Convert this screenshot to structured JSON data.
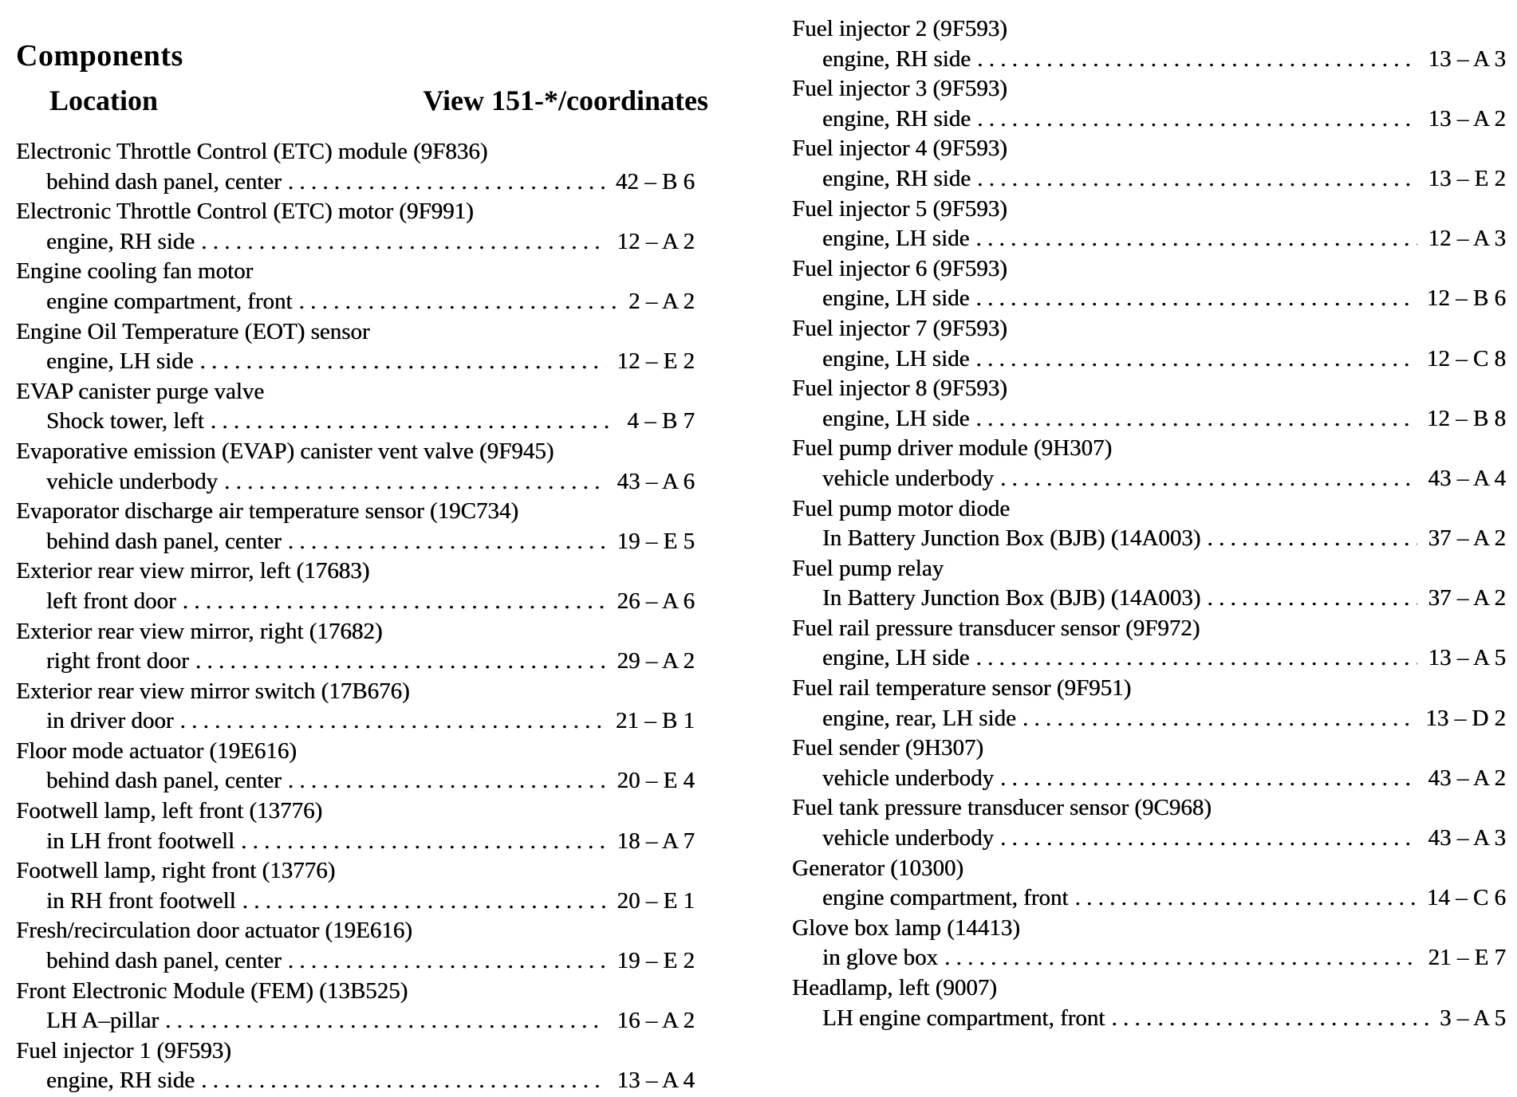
{
  "header": {
    "title": "Components",
    "col_location": "Location",
    "col_view": "View 151-*/coordinates"
  },
  "left_entries": [
    {
      "name": "Electronic Throttle Control (ETC) module (9F836)",
      "location": "behind dash panel, center",
      "coord": "42 – B 6"
    },
    {
      "name": "Electronic Throttle Control (ETC) motor (9F991)",
      "location": "engine, RH side",
      "coord": "12 – A 2"
    },
    {
      "name": "Engine cooling fan motor",
      "location": "engine compartment, front",
      "coord": "2 – A 2"
    },
    {
      "name": "Engine Oil Temperature (EOT) sensor",
      "location": "engine, LH side",
      "coord": "12 – E 2"
    },
    {
      "name": "EVAP canister purge valve",
      "location": "Shock tower, left",
      "coord": "4 – B 7"
    },
    {
      "name": "Evaporative emission (EVAP) canister vent valve (9F945)",
      "location": "vehicle underbody",
      "coord": "43 – A 6"
    },
    {
      "name": "Evaporator discharge air temperature sensor (19C734)",
      "location": "behind dash panel, center",
      "coord": "19 – E 5"
    },
    {
      "name": "Exterior rear view mirror, left (17683)",
      "location": "left front door",
      "coord": "26 – A 6"
    },
    {
      "name": "Exterior rear view mirror, right (17682)",
      "location": "right front door",
      "coord": "29 – A 2"
    },
    {
      "name": "Exterior rear view mirror switch (17B676)",
      "location": "in driver door",
      "coord": "21 – B 1"
    },
    {
      "name": "Floor mode actuator (19E616)",
      "location": "behind dash panel, center",
      "coord": "20 – E 4"
    },
    {
      "name": "Footwell lamp, left front (13776)",
      "location": "in LH front footwell",
      "coord": "18 – A 7"
    },
    {
      "name": "Footwell lamp, right front (13776)",
      "location": "in RH front footwell",
      "coord": "20 – E 1"
    },
    {
      "name": "Fresh/recirculation door actuator (19E616)",
      "location": "behind dash panel, center",
      "coord": "19 – E 2"
    },
    {
      "name": "Front Electronic Module (FEM) (13B525)",
      "location": "LH A–pillar",
      "coord": "16 – A 2"
    },
    {
      "name": "Fuel injector 1 (9F593)",
      "location": "engine, RH side",
      "coord": "13 – A 4"
    }
  ],
  "right_entries": [
    {
      "name": "Fuel injector 2 (9F593)",
      "location": "engine, RH side",
      "coord": "13 – A 3"
    },
    {
      "name": "Fuel injector 3 (9F593)",
      "location": "engine, RH side",
      "coord": "13 – A 2"
    },
    {
      "name": "Fuel injector 4 (9F593)",
      "location": "engine, RH side",
      "coord": "13 – E 2"
    },
    {
      "name": "Fuel injector 5 (9F593)",
      "location": "engine, LH side",
      "coord": "12 – A 3"
    },
    {
      "name": "Fuel injector 6 (9F593)",
      "location": "engine, LH side",
      "coord": "12 – B 6"
    },
    {
      "name": "Fuel injector 7 (9F593)",
      "location": "engine, LH side",
      "coord": "12 – C 8"
    },
    {
      "name": "Fuel injector 8 (9F593)",
      "location": "engine, LH side",
      "coord": "12 – B 8"
    },
    {
      "name": "Fuel pump driver module (9H307)",
      "location": "vehicle underbody",
      "coord": "43 – A 4"
    },
    {
      "name": "Fuel pump motor diode",
      "location": "In Battery Junction Box (BJB) (14A003)",
      "coord": "37 – A 2"
    },
    {
      "name": "Fuel pump relay",
      "location": "In Battery Junction Box (BJB) (14A003)",
      "coord": "37 – A 2"
    },
    {
      "name": "Fuel rail pressure transducer sensor (9F972)",
      "location": "engine, LH side",
      "coord": "13 – A 5"
    },
    {
      "name": "Fuel rail temperature sensor (9F951)",
      "location": "engine, rear, LH side",
      "coord": "13 – D 2"
    },
    {
      "name": "Fuel sender (9H307)",
      "location": "vehicle underbody",
      "coord": "43 – A 2"
    },
    {
      "name": "Fuel tank pressure transducer sensor (9C968)",
      "location": "vehicle underbody",
      "coord": "43 – A 3"
    },
    {
      "name": "Generator (10300)",
      "location": "engine compartment, front",
      "coord": "14 – C 6"
    },
    {
      "name": "Glove box lamp (14413)",
      "location": "in glove box",
      "coord": "21 – E 7"
    },
    {
      "name": "Headlamp, left (9007)",
      "location": "LH engine compartment, front",
      "coord": "3 – A 5"
    }
  ]
}
